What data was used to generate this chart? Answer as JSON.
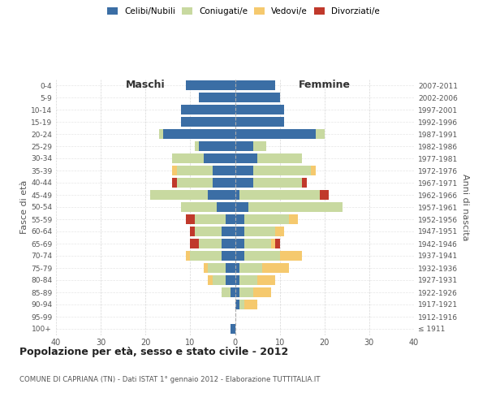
{
  "age_groups": [
    "0-4",
    "5-9",
    "10-14",
    "15-19",
    "20-24",
    "25-29",
    "30-34",
    "35-39",
    "40-44",
    "45-49",
    "50-54",
    "55-59",
    "60-64",
    "65-69",
    "70-74",
    "75-79",
    "80-84",
    "85-89",
    "90-94",
    "95-99",
    "100+"
  ],
  "birth_years": [
    "2007-2011",
    "2002-2006",
    "1997-2001",
    "1992-1996",
    "1987-1991",
    "1982-1986",
    "1977-1981",
    "1972-1976",
    "1967-1971",
    "1962-1966",
    "1957-1961",
    "1952-1956",
    "1947-1951",
    "1942-1946",
    "1937-1941",
    "1932-1936",
    "1927-1931",
    "1922-1926",
    "1917-1921",
    "1912-1916",
    "≤ 1911"
  ],
  "colors": {
    "celibe": "#3B6EA5",
    "coniugato": "#C8D9A0",
    "vedovo": "#F5C96E",
    "divorziato": "#C0392B"
  },
  "maschi": {
    "celibe": [
      11,
      8,
      12,
      12,
      16,
      8,
      7,
      5,
      5,
      6,
      4,
      2,
      3,
      3,
      3,
      2,
      2,
      1,
      0,
      0,
      1
    ],
    "coniugato": [
      0,
      0,
      0,
      0,
      1,
      1,
      7,
      8,
      8,
      13,
      8,
      7,
      6,
      5,
      7,
      4,
      3,
      2,
      0,
      0,
      0
    ],
    "vedovo": [
      0,
      0,
      0,
      0,
      0,
      0,
      0,
      1,
      0,
      0,
      0,
      0,
      0,
      0,
      1,
      1,
      1,
      0,
      0,
      0,
      0
    ],
    "divorziato": [
      0,
      0,
      0,
      0,
      0,
      0,
      0,
      0,
      1,
      0,
      0,
      2,
      1,
      2,
      0,
      0,
      0,
      0,
      0,
      0,
      0
    ]
  },
  "femmine": {
    "nubile": [
      9,
      10,
      11,
      11,
      18,
      4,
      5,
      4,
      4,
      1,
      3,
      2,
      2,
      2,
      2,
      1,
      1,
      1,
      1,
      0,
      0
    ],
    "coniugata": [
      0,
      0,
      0,
      0,
      2,
      3,
      10,
      13,
      11,
      18,
      21,
      10,
      7,
      6,
      8,
      5,
      4,
      3,
      1,
      0,
      0
    ],
    "vedova": [
      0,
      0,
      0,
      0,
      0,
      0,
      0,
      1,
      0,
      0,
      0,
      2,
      2,
      1,
      5,
      6,
      4,
      4,
      3,
      0,
      0
    ],
    "divorziata": [
      0,
      0,
      0,
      0,
      0,
      0,
      0,
      0,
      1,
      2,
      0,
      0,
      0,
      1,
      0,
      0,
      0,
      0,
      0,
      0,
      0
    ]
  },
  "xlim": 40,
  "title": "Popolazione per età, sesso e stato civile - 2012",
  "subtitle": "COMUNE DI CAPRIANA (TN) - Dati ISTAT 1° gennaio 2012 - Elaborazione TUTTITALIA.IT",
  "ylabel_left": "Fasce di età",
  "ylabel_right": "Anni di nascita",
  "xlabel_left": "Maschi",
  "xlabel_right": "Femmine",
  "legend_labels": [
    "Celibi/Nubili",
    "Coniugati/e",
    "Vedovi/e",
    "Divorziati/e"
  ],
  "background_color": "#FFFFFF",
  "grid_color": "#CCCCCC"
}
